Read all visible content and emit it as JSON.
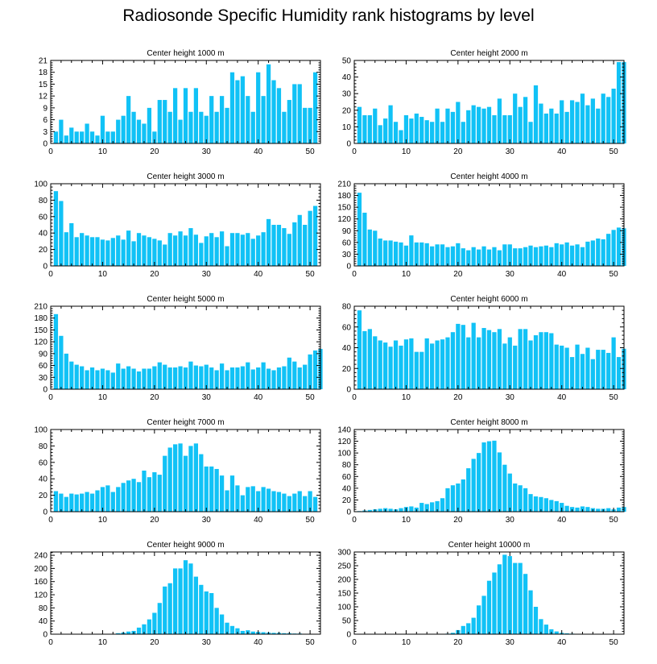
{
  "title": "Radiosonde Specific Humidity rank histograms by level",
  "colors": {
    "bar": "#11c2f6",
    "barEdge": "#ffffff",
    "axis": "#000000"
  },
  "chart_data": [
    {
      "type": "bar",
      "title": "Center height 1000 m",
      "xlim": [
        0,
        52
      ],
      "ylim": [
        0,
        21
      ],
      "xticks": [
        0,
        10,
        20,
        30,
        40,
        50
      ],
      "yticks": [
        0,
        3,
        6,
        9,
        12,
        15,
        18,
        21
      ],
      "values": [
        3,
        6,
        2,
        4,
        3,
        3,
        5,
        3,
        2,
        7,
        3,
        3,
        6,
        7,
        12,
        8,
        6,
        5,
        9,
        3,
        11,
        11,
        8,
        14,
        6,
        14,
        8,
        14,
        8,
        7,
        12,
        8,
        12,
        9,
        18,
        16,
        17,
        12,
        8,
        18,
        12,
        20,
        16,
        14,
        8,
        11,
        15,
        15,
        9,
        9,
        18
      ]
    },
    {
      "type": "bar",
      "title": "Center height 2000 m",
      "xlim": [
        0,
        52
      ],
      "ylim": [
        0,
        50
      ],
      "xticks": [
        0,
        10,
        20,
        30,
        40,
        50
      ],
      "yticks": [
        0,
        10,
        20,
        30,
        40,
        50
      ],
      "values": [
        22,
        17,
        17,
        21,
        11,
        15,
        23,
        13,
        8,
        17,
        15,
        18,
        16,
        14,
        13,
        21,
        13,
        21,
        19,
        25,
        13,
        20,
        23,
        22,
        21,
        22,
        17,
        27,
        17,
        17,
        30,
        22,
        28,
        13,
        35,
        24,
        18,
        21,
        18,
        26,
        19,
        26,
        25,
        30,
        23,
        27,
        21,
        30,
        28,
        33,
        49,
        49
      ]
    },
    {
      "type": "bar",
      "title": "Center height 3000 m",
      "xlim": [
        0,
        52
      ],
      "ylim": [
        0,
        100
      ],
      "xticks": [
        0,
        10,
        20,
        30,
        40,
        50
      ],
      "yticks": [
        0,
        20,
        40,
        60,
        80,
        100
      ],
      "values": [
        91,
        79,
        41,
        52,
        35,
        40,
        37,
        35,
        35,
        32,
        31,
        34,
        37,
        32,
        43,
        30,
        40,
        37,
        35,
        33,
        31,
        26,
        40,
        37,
        42,
        37,
        46,
        38,
        28,
        36,
        40,
        35,
        42,
        24,
        40,
        40,
        38,
        40,
        33,
        37,
        41,
        57,
        50,
        50,
        46,
        39,
        53,
        62,
        50,
        67,
        73
      ]
    },
    {
      "type": "bar",
      "title": "Center height 4000 m",
      "xlim": [
        0,
        52
      ],
      "ylim": [
        0,
        210
      ],
      "xticks": [
        0,
        10,
        20,
        30,
        40,
        50
      ],
      "yticks": [
        0,
        30,
        60,
        90,
        120,
        150,
        180,
        210
      ],
      "values": [
        187,
        136,
        93,
        90,
        70,
        65,
        65,
        62,
        60,
        52,
        78,
        60,
        60,
        58,
        50,
        55,
        55,
        48,
        50,
        58,
        45,
        40,
        48,
        42,
        50,
        42,
        48,
        40,
        55,
        55,
        45,
        45,
        48,
        52,
        48,
        50,
        52,
        48,
        58,
        55,
        60,
        52,
        55,
        48,
        62,
        65,
        70,
        68,
        82,
        92,
        98,
        96
      ]
    },
    {
      "type": "bar",
      "title": "Center height 5000 m",
      "xlim": [
        0,
        52
      ],
      "ylim": [
        0,
        210
      ],
      "xticks": [
        0,
        10,
        20,
        30,
        40,
        50
      ],
      "yticks": [
        0,
        30,
        60,
        90,
        120,
        150,
        180,
        210
      ],
      "values": [
        190,
        135,
        90,
        70,
        62,
        58,
        48,
        55,
        48,
        52,
        48,
        42,
        65,
        52,
        58,
        52,
        45,
        52,
        52,
        58,
        68,
        62,
        55,
        55,
        58,
        55,
        70,
        60,
        58,
        62,
        55,
        48,
        65,
        48,
        55,
        55,
        58,
        68,
        50,
        55,
        68,
        52,
        48,
        55,
        58,
        80,
        70,
        55,
        62,
        88,
        98,
        102
      ]
    },
    {
      "type": "bar",
      "title": "Center height 6000 m",
      "xlim": [
        0,
        52
      ],
      "ylim": [
        0,
        80
      ],
      "xticks": [
        0,
        10,
        20,
        30,
        40,
        50
      ],
      "yticks": [
        0,
        20,
        40,
        60,
        80
      ],
      "values": [
        76,
        56,
        58,
        51,
        47,
        45,
        41,
        47,
        42,
        48,
        49,
        36,
        36,
        49,
        44,
        47,
        48,
        50,
        55,
        63,
        62,
        50,
        64,
        50,
        59,
        57,
        55,
        58,
        44,
        50,
        42,
        58,
        58,
        47,
        52,
        55,
        55,
        54,
        43,
        42,
        40,
        31,
        43,
        34,
        40,
        29,
        38,
        38,
        35,
        50,
        31,
        39
      ]
    },
    {
      "type": "bar",
      "title": "Center height 7000 m",
      "xlim": [
        0,
        52
      ],
      "ylim": [
        0,
        100
      ],
      "xticks": [
        0,
        10,
        20,
        30,
        40,
        50
      ],
      "yticks": [
        0,
        20,
        40,
        60,
        80,
        100
      ],
      "values": [
        25,
        22,
        18,
        22,
        21,
        22,
        24,
        22,
        26,
        30,
        32,
        24,
        30,
        35,
        38,
        40,
        36,
        50,
        42,
        48,
        45,
        68,
        78,
        82,
        83,
        68,
        80,
        83,
        70,
        55,
        55,
        52,
        44,
        26,
        44,
        32,
        20,
        30,
        31,
        25,
        30,
        28,
        25,
        24,
        22,
        19,
        22,
        25,
        19,
        25,
        18
      ]
    },
    {
      "type": "bar",
      "title": "Center height 8000 m",
      "xlim": [
        0,
        52
      ],
      "ylim": [
        0,
        140
      ],
      "xticks": [
        0,
        10,
        20,
        30,
        40,
        50
      ],
      "yticks": [
        0,
        20,
        40,
        60,
        80,
        100,
        120,
        140
      ],
      "values": [
        1,
        2,
        3,
        4,
        5,
        6,
        5,
        4,
        6,
        8,
        9,
        7,
        15,
        13,
        16,
        18,
        23,
        40,
        45,
        48,
        55,
        74,
        90,
        100,
        118,
        120,
        121,
        101,
        80,
        65,
        48,
        45,
        40,
        30,
        26,
        25,
        23,
        20,
        18,
        15,
        10,
        8,
        7,
        9,
        8,
        6,
        5,
        5,
        6,
        4,
        7,
        8
      ]
    },
    {
      "type": "bar",
      "title": "Center height 9000 m",
      "xlim": [
        0,
        52
      ],
      "ylim": [
        0,
        250
      ],
      "xticks": [
        0,
        10,
        20,
        30,
        40,
        50
      ],
      "yticks": [
        0,
        40,
        80,
        120,
        160,
        200,
        240
      ],
      "values": [
        0,
        0,
        0,
        0,
        0,
        0,
        0,
        0,
        0,
        0,
        1,
        1,
        3,
        5,
        8,
        10,
        20,
        30,
        45,
        65,
        95,
        145,
        155,
        200,
        200,
        225,
        215,
        175,
        150,
        130,
        125,
        80,
        60,
        35,
        25,
        18,
        10,
        12,
        8,
        7,
        6,
        5,
        4,
        4,
        3,
        3,
        2,
        2,
        1,
        1,
        0
      ]
    },
    {
      "type": "bar",
      "title": "Center height 10000 m",
      "xlim": [
        0,
        52
      ],
      "ylim": [
        0,
        300
      ],
      "xticks": [
        0,
        10,
        20,
        30,
        40,
        50
      ],
      "yticks": [
        0,
        50,
        100,
        150,
        200,
        250,
        300
      ],
      "values": [
        0,
        0,
        0,
        0,
        0,
        0,
        0,
        0,
        0,
        0,
        0,
        0,
        0,
        0,
        0,
        0,
        0,
        2,
        5,
        15,
        30,
        40,
        60,
        105,
        140,
        195,
        225,
        255,
        290,
        285,
        260,
        260,
        220,
        160,
        100,
        55,
        35,
        18,
        10,
        5,
        3,
        2,
        1,
        1,
        0,
        0,
        0,
        0,
        0,
        0,
        0
      ]
    }
  ]
}
